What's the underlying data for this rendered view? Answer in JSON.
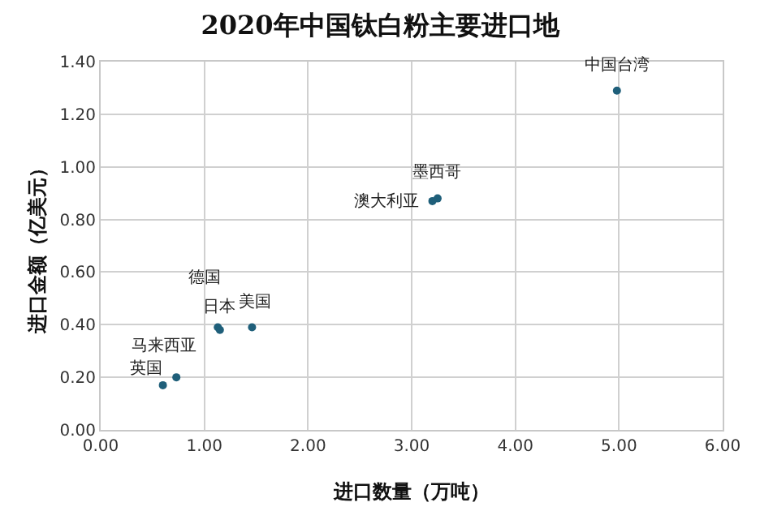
{
  "chart_data": {
    "type": "scatter",
    "title": "2020年中国钛白粉主要进口地",
    "xlabel": "进口数量（万吨）",
    "ylabel": "进口金额（亿美元）",
    "x": [
      4.98,
      3.25,
      3.2,
      1.13,
      1.15,
      1.46,
      0.73,
      0.6
    ],
    "series": [
      {
        "color": "#1f5f7a",
        "values": [
          1.29,
          0.88,
          0.87,
          0.39,
          0.38,
          0.39,
          0.2,
          0.17
        ]
      }
    ],
    "annotations": [
      {
        "text": "中国台湾",
        "x": 4.98,
        "y": 1.29
      },
      {
        "text": "墨西哥",
        "x": 3.25,
        "y": 0.88
      },
      {
        "text": "澳大利亚",
        "x": 3.2,
        "y": 0.87
      },
      {
        "text": "德国",
        "x": 1.13,
        "y": 0.39
      },
      {
        "text": "日本",
        "x": 1.15,
        "y": 0.38
      },
      {
        "text": "美国",
        "x": 1.46,
        "y": 0.39
      },
      {
        "text": "马来西亚",
        "x": 0.73,
        "y": 0.2
      },
      {
        "text": "英国",
        "x": 0.6,
        "y": 0.17
      }
    ],
    "xlim": [
      0,
      6
    ],
    "ylim": [
      0,
      1.4
    ],
    "xticks": [
      {
        "value": 0,
        "label": "0.00"
      },
      {
        "value": 1,
        "label": "1.00"
      },
      {
        "value": 2,
        "label": "2.00"
      },
      {
        "value": 3,
        "label": "3.00"
      },
      {
        "value": 4,
        "label": "4.00"
      },
      {
        "value": 5,
        "label": "5.00"
      },
      {
        "value": 6,
        "label": "6.00"
      }
    ],
    "yticks": [
      {
        "value": 0,
        "label": "0.00"
      },
      {
        "value": 0.2,
        "label": "0.20"
      },
      {
        "value": 0.4,
        "label": "0.40"
      },
      {
        "value": 0.6,
        "label": "0.60"
      },
      {
        "value": 0.8,
        "label": "0.80"
      },
      {
        "value": 1.0,
        "label": "1.00"
      },
      {
        "value": 1.2,
        "label": "1.20"
      },
      {
        "value": 1.4,
        "label": "1.40"
      }
    ],
    "grid": true,
    "marker": "circle"
  }
}
